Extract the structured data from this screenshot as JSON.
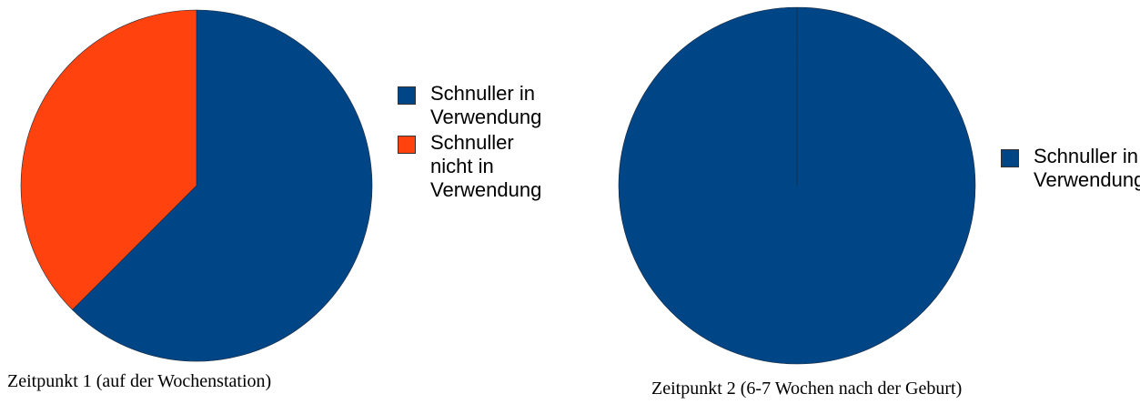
{
  "chart_data": [
    {
      "type": "pie",
      "title": "Zeitpunkt 1 (auf der Wochenstation)",
      "series": [
        {
          "name": "Schnuller in Verwendung",
          "color": "#004586",
          "values": [
            62.5
          ]
        },
        {
          "name": "Schnuller nicht in Verwendung",
          "color": "#ff420e",
          "values": [
            37.5
          ]
        }
      ]
    },
    {
      "type": "pie",
      "title": "Zeitpunkt 2 (6-7 Wochen nach der Geburt)",
      "series": [
        {
          "name": "Schnuller in Verwendung",
          "color": "#004586",
          "values": [
            100
          ]
        }
      ]
    }
  ]
}
